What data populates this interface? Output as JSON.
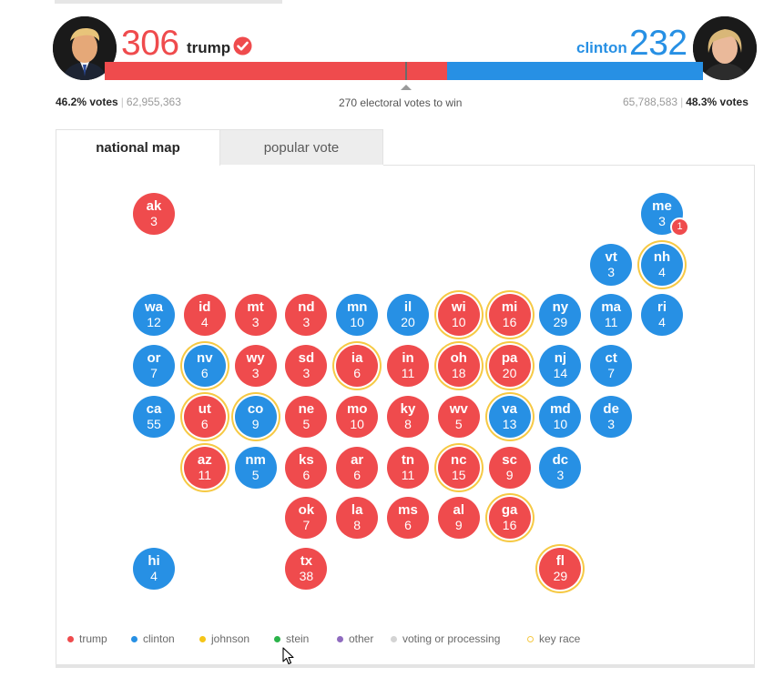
{
  "header": {
    "trump": {
      "electoral": "306",
      "name": "trump",
      "winner_icon": "check-circle-icon",
      "pct": "46.2% votes",
      "votes": "62,955,363",
      "color": "#ef4b4d"
    },
    "clinton": {
      "electoral": "232",
      "name": "clinton",
      "pct": "48.3% votes",
      "votes": "65,788,583",
      "color": "#2790e4"
    },
    "threshold_text": "270 electoral votes to win"
  },
  "tabs": {
    "national_map": "national map",
    "popular_vote": "popular vote"
  },
  "map": {
    "states": [
      {
        "ab": "ak",
        "ev": "3",
        "party": "trump"
      },
      {
        "ab": "me",
        "ev": "3",
        "party": "clinton",
        "split_badge": "1"
      },
      {
        "ab": "vt",
        "ev": "3",
        "party": "clinton"
      },
      {
        "ab": "nh",
        "ev": "4",
        "party": "clinton",
        "key_race": true
      },
      {
        "ab": "wa",
        "ev": "12",
        "party": "clinton"
      },
      {
        "ab": "id",
        "ev": "4",
        "party": "trump"
      },
      {
        "ab": "mt",
        "ev": "3",
        "party": "trump"
      },
      {
        "ab": "nd",
        "ev": "3",
        "party": "trump"
      },
      {
        "ab": "mn",
        "ev": "10",
        "party": "clinton"
      },
      {
        "ab": "il",
        "ev": "20",
        "party": "clinton"
      },
      {
        "ab": "wi",
        "ev": "10",
        "party": "trump",
        "key_race": true
      },
      {
        "ab": "mi",
        "ev": "16",
        "party": "trump",
        "key_race": true
      },
      {
        "ab": "ny",
        "ev": "29",
        "party": "clinton"
      },
      {
        "ab": "ma",
        "ev": "11",
        "party": "clinton"
      },
      {
        "ab": "ri",
        "ev": "4",
        "party": "clinton"
      },
      {
        "ab": "or",
        "ev": "7",
        "party": "clinton"
      },
      {
        "ab": "nv",
        "ev": "6",
        "party": "clinton",
        "key_race": true
      },
      {
        "ab": "wy",
        "ev": "3",
        "party": "trump"
      },
      {
        "ab": "sd",
        "ev": "3",
        "party": "trump"
      },
      {
        "ab": "ia",
        "ev": "6",
        "party": "trump",
        "key_race": true
      },
      {
        "ab": "in",
        "ev": "11",
        "party": "trump"
      },
      {
        "ab": "oh",
        "ev": "18",
        "party": "trump",
        "key_race": true
      },
      {
        "ab": "pa",
        "ev": "20",
        "party": "trump",
        "key_race": true
      },
      {
        "ab": "nj",
        "ev": "14",
        "party": "clinton"
      },
      {
        "ab": "ct",
        "ev": "7",
        "party": "clinton"
      },
      {
        "ab": "ca",
        "ev": "55",
        "party": "clinton"
      },
      {
        "ab": "ut",
        "ev": "6",
        "party": "trump",
        "key_race": true
      },
      {
        "ab": "co",
        "ev": "9",
        "party": "clinton",
        "key_race": true
      },
      {
        "ab": "ne",
        "ev": "5",
        "party": "trump"
      },
      {
        "ab": "mo",
        "ev": "10",
        "party": "trump"
      },
      {
        "ab": "ky",
        "ev": "8",
        "party": "trump"
      },
      {
        "ab": "wv",
        "ev": "5",
        "party": "trump"
      },
      {
        "ab": "va",
        "ev": "13",
        "party": "clinton",
        "key_race": true
      },
      {
        "ab": "md",
        "ev": "10",
        "party": "clinton"
      },
      {
        "ab": "de",
        "ev": "3",
        "party": "clinton"
      },
      {
        "ab": "az",
        "ev": "11",
        "party": "trump",
        "key_race": true
      },
      {
        "ab": "nm",
        "ev": "5",
        "party": "clinton"
      },
      {
        "ab": "ks",
        "ev": "6",
        "party": "trump"
      },
      {
        "ab": "ar",
        "ev": "6",
        "party": "trump"
      },
      {
        "ab": "tn",
        "ev": "11",
        "party": "trump"
      },
      {
        "ab": "nc",
        "ev": "15",
        "party": "trump",
        "key_race": true
      },
      {
        "ab": "sc",
        "ev": "9",
        "party": "trump"
      },
      {
        "ab": "dc",
        "ev": "3",
        "party": "clinton"
      },
      {
        "ab": "ok",
        "ev": "7",
        "party": "trump"
      },
      {
        "ab": "la",
        "ev": "8",
        "party": "trump"
      },
      {
        "ab": "ms",
        "ev": "6",
        "party": "trump"
      },
      {
        "ab": "al",
        "ev": "9",
        "party": "trump"
      },
      {
        "ab": "ga",
        "ev": "16",
        "party": "trump",
        "key_race": true
      },
      {
        "ab": "hi",
        "ev": "4",
        "party": "clinton"
      },
      {
        "ab": "tx",
        "ev": "38",
        "party": "trump"
      },
      {
        "ab": "fl",
        "ev": "29",
        "party": "trump",
        "key_race": true
      }
    ]
  },
  "legend": [
    {
      "label": "trump",
      "color": "#ef4b4d"
    },
    {
      "label": "clinton",
      "color": "#2790e4"
    },
    {
      "label": "johnson",
      "color": "#f5c518"
    },
    {
      "label": "stein",
      "color": "#2bb34a"
    },
    {
      "label": "other",
      "color": "#8f6bbf"
    },
    {
      "label": "voting or processing",
      "color": "#d4d4d4"
    },
    {
      "label": "key race",
      "color": "#f6c944",
      "ring": true
    }
  ]
}
